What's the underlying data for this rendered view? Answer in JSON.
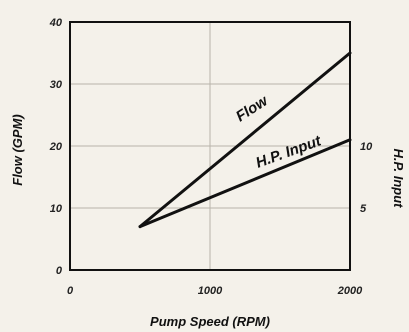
{
  "chart_data": {
    "type": "line",
    "title": "",
    "xlabel": "Pump Speed (RPM)",
    "ylabel_left": "Flow (GPM)",
    "ylabel_right": "H.P. Input",
    "xlim": [
      0,
      2000
    ],
    "ylim_left": [
      0,
      40
    ],
    "ylim_right": [
      0,
      20
    ],
    "x_ticks": [
      "0",
      "1000",
      "2000"
    ],
    "y_ticks_left": [
      "0",
      "10",
      "20",
      "30",
      "40"
    ],
    "y_ticks_right": [
      "5",
      "10"
    ],
    "grid": true,
    "series": [
      {
        "name": "Flow",
        "axis": "left",
        "x": [
          500,
          2000
        ],
        "y": [
          7,
          35
        ]
      },
      {
        "name": "H.P. Input",
        "axis": "right",
        "x": [
          500,
          2000
        ],
        "y": [
          3.5,
          10.5
        ]
      }
    ]
  }
}
